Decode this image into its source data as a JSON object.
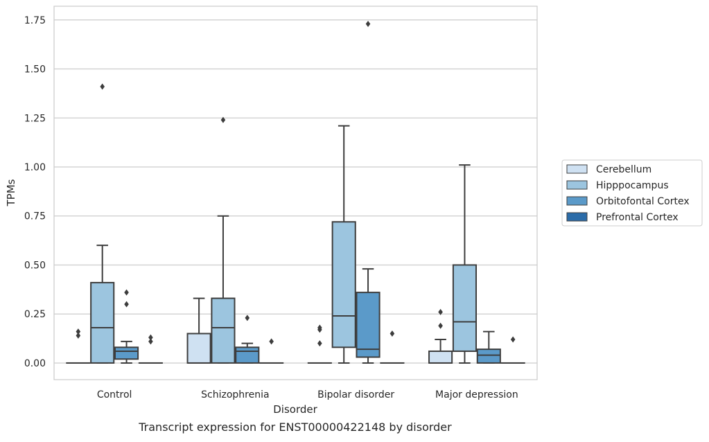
{
  "chart_data": {
    "type": "box",
    "title": "",
    "caption": "Transcript expression for ENST00000422148 by disorder",
    "xlabel": "Disorder",
    "ylabel": "TPMs",
    "ylim": [
      -0.085,
      1.82
    ],
    "yticks": [
      0,
      0.25,
      0.5,
      0.75,
      1,
      1.25,
      1.5,
      1.75
    ],
    "ytick_labels": [
      "0.00",
      "0.25",
      "0.50",
      "0.75",
      "1.00",
      "1.25",
      "1.50",
      "1.75"
    ],
    "grid": "horizontal",
    "legend_position": "right-center",
    "categories": [
      "Control",
      "Schizophrenia",
      "Bipolar disorder",
      "Major depression"
    ],
    "series": [
      {
        "name": "Cerebellum",
        "color": "#cfe1f2",
        "boxes": [
          {
            "min": 0,
            "q1": 0,
            "median": 0,
            "q3": 0,
            "max": 0,
            "outliers": [
              0.14,
              0.16
            ]
          },
          {
            "min": 0,
            "q1": 0,
            "median": 0,
            "q3": 0.15,
            "max": 0.33,
            "outliers": []
          },
          {
            "min": 0,
            "q1": 0,
            "median": 0,
            "q3": 0,
            "max": 0,
            "outliers": [
              0.1,
              0.17,
              0.18
            ]
          },
          {
            "min": 0,
            "q1": 0,
            "median": 0,
            "q3": 0.06,
            "max": 0.12,
            "outliers": [
              0.19,
              0.26
            ]
          }
        ]
      },
      {
        "name": "Hipppocampus",
        "color": "#9cc5df",
        "boxes": [
          {
            "min": 0,
            "q1": 0,
            "median": 0.18,
            "q3": 0.41,
            "max": 0.6,
            "outliers": [
              1.41
            ]
          },
          {
            "min": 0,
            "q1": 0,
            "median": 0.18,
            "q3": 0.33,
            "max": 0.75,
            "outliers": [
              1.24
            ]
          },
          {
            "min": 0,
            "q1": 0.08,
            "median": 0.24,
            "q3": 0.72,
            "max": 1.21,
            "outliers": []
          },
          {
            "min": 0,
            "q1": 0.06,
            "median": 0.21,
            "q3": 0.5,
            "max": 1.01,
            "outliers": []
          }
        ]
      },
      {
        "name": "Orbitofontal Cortex",
        "color": "#5b9ac9",
        "boxes": [
          {
            "min": 0,
            "q1": 0.02,
            "median": 0.06,
            "q3": 0.08,
            "max": 0.11,
            "outliers": [
              0.3,
              0.36
            ]
          },
          {
            "min": 0,
            "q1": 0,
            "median": 0.06,
            "q3": 0.08,
            "max": 0.1,
            "outliers": [
              0.23
            ]
          },
          {
            "min": 0,
            "q1": 0.03,
            "median": 0.07,
            "q3": 0.36,
            "max": 0.48,
            "outliers": [
              1.73
            ]
          },
          {
            "min": 0,
            "q1": 0,
            "median": 0.04,
            "q3": 0.07,
            "max": 0.16,
            "outliers": []
          }
        ]
      },
      {
        "name": "Prefrontal Cortex",
        "color": "#2b6ca9",
        "boxes": [
          {
            "min": 0,
            "q1": 0,
            "median": 0,
            "q3": 0,
            "max": 0,
            "outliers": [
              0.11,
              0.13
            ]
          },
          {
            "min": 0,
            "q1": 0,
            "median": 0,
            "q3": 0,
            "max": 0,
            "outliers": [
              0.11
            ]
          },
          {
            "min": 0,
            "q1": 0,
            "median": 0,
            "q3": 0,
            "max": 0,
            "outliers": [
              0.15
            ]
          },
          {
            "min": 0,
            "q1": 0,
            "median": 0,
            "q3": 0,
            "max": 0,
            "outliers": [
              0.12
            ]
          }
        ]
      }
    ]
  }
}
